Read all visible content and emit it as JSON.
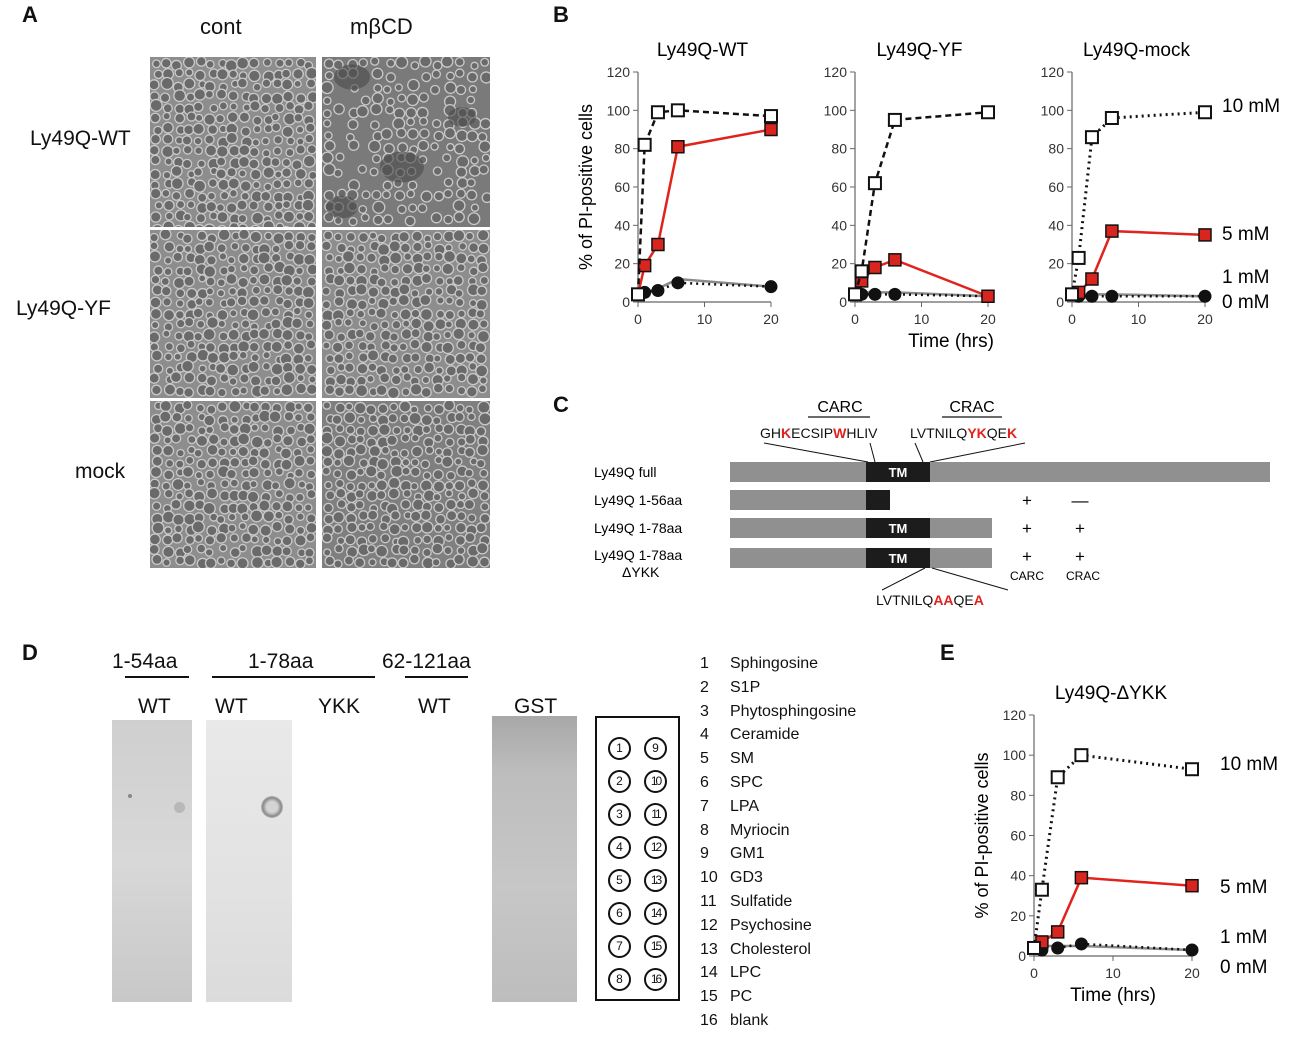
{
  "panels": {
    "A": {
      "letter": "A",
      "col_labels": [
        "cont",
        "mβCD"
      ],
      "row_labels": [
        "Ly49Q-WT",
        "Ly49Q-YF",
        "mock"
      ]
    },
    "B": {
      "letter": "B"
    },
    "C": {
      "letter": "C",
      "carc_label": "CARC",
      "crac_label": "CRAC",
      "carc_seq": [
        {
          "t": "GH",
          "red": false
        },
        {
          "t": "K",
          "red": true
        },
        {
          "t": "ECSIP",
          "red": false
        },
        {
          "t": "W",
          "red": true
        },
        {
          "t": "HLIV",
          "red": false
        }
      ],
      "crac_seq": [
        {
          "t": "LVTNILQ",
          "red": false
        },
        {
          "t": "YK",
          "red": true
        },
        {
          "t": "QE",
          "red": false
        },
        {
          "t": "K",
          "red": true
        }
      ],
      "mut_seq": [
        {
          "t": "LVTNILQ",
          "red": false
        },
        {
          "t": "AA",
          "red": true
        },
        {
          "t": "QE",
          "red": false
        },
        {
          "t": "A",
          "red": true
        }
      ],
      "tm_label": "TM",
      "constructs": [
        {
          "label": "Ly49Q full",
          "sub": "",
          "carc": "",
          "crac": ""
        },
        {
          "label": "Ly49Q 1-56aa",
          "sub": "",
          "carc": "+",
          "crac": "—"
        },
        {
          "label": "Ly49Q 1-78aa",
          "sub": "",
          "carc": "+",
          "crac": "+"
        },
        {
          "label": "Ly49Q 1-78aa",
          "sub": "ΔYKK",
          "carc": "+",
          "crac": "+"
        }
      ],
      "col_labels": [
        "CARC",
        "CRAC"
      ]
    },
    "D": {
      "letter": "D",
      "groups": [
        "1-54aa",
        "1-78aa",
        "62-121aa"
      ],
      "lanes": [
        "WT",
        "WT",
        "YKK",
        "WT",
        "GST"
      ],
      "spot_numbers": [
        "1",
        "2",
        "3",
        "4",
        "5",
        "6",
        "7",
        "8",
        "9",
        "10",
        "11",
        "12",
        "13",
        "14",
        "15",
        "16"
      ],
      "lipids": [
        {
          "n": "1",
          "name": "Sphingosine"
        },
        {
          "n": "2",
          "name": "S1P"
        },
        {
          "n": "3",
          "name": "Phytosphingosine"
        },
        {
          "n": "4",
          "name": "Ceramide"
        },
        {
          "n": "5",
          "name": "SM"
        },
        {
          "n": "6",
          "name": "SPC"
        },
        {
          "n": "7",
          "name": "LPA"
        },
        {
          "n": "8",
          "name": "Myriocin"
        },
        {
          "n": "9",
          "name": "GM1"
        },
        {
          "n": "10",
          "name": "GD3"
        },
        {
          "n": "11",
          "name": "Sulfatide"
        },
        {
          "n": "12",
          "name": "Psychosine"
        },
        {
          "n": "13",
          "name": "Cholesterol"
        },
        {
          "n": "14",
          "name": "LPC"
        },
        {
          "n": "15",
          "name": "PC"
        },
        {
          "n": "16",
          "name": "blank"
        }
      ]
    },
    "E": {
      "letter": "E"
    }
  },
  "chart_data": [
    {
      "type": "line",
      "id": "B1",
      "title": "Ly49Q-WT",
      "ylabel": "% of PI-positive cells",
      "xlabel": "",
      "xlim": [
        0,
        20
      ],
      "ylim": [
        0,
        120
      ],
      "xticks": [
        0,
        10,
        20
      ],
      "yticks": [
        0,
        20,
        40,
        60,
        80,
        100,
        120
      ],
      "series": [
        {
          "name": "",
          "style": "dashed-white-square",
          "x": [
            0,
            1,
            3,
            6,
            20
          ],
          "y": [
            4,
            82,
            99,
            100,
            97
          ]
        },
        {
          "name": "",
          "style": "red-square",
          "x": [
            0,
            1,
            3,
            6,
            20
          ],
          "y": [
            4,
            19,
            30,
            81,
            90
          ]
        },
        {
          "name": "",
          "style": "gray-line",
          "x": [
            0,
            1,
            3,
            6,
            20
          ],
          "y": [
            4,
            5,
            7,
            12,
            8
          ]
        },
        {
          "name": "",
          "style": "dotted-black-circle",
          "x": [
            0,
            1,
            3,
            6,
            20
          ],
          "y": [
            4,
            5,
            6,
            10,
            8
          ]
        }
      ]
    },
    {
      "type": "line",
      "id": "B2",
      "title": "Ly49Q-YF",
      "ylabel": "",
      "xlabel": "Time (hrs)",
      "xlim": [
        0,
        20
      ],
      "ylim": [
        0,
        120
      ],
      "xticks": [
        0,
        10,
        20
      ],
      "yticks": [
        0,
        20,
        40,
        60,
        80,
        100,
        120
      ],
      "series": [
        {
          "name": "",
          "style": "dashed-white-square",
          "x": [
            0,
            1,
            3,
            6,
            20
          ],
          "y": [
            4,
            16,
            62,
            95,
            99
          ]
        },
        {
          "name": "",
          "style": "red-square",
          "x": [
            0,
            1,
            3,
            6,
            20
          ],
          "y": [
            4,
            11,
            18,
            22,
            3
          ]
        },
        {
          "name": "",
          "style": "gray-line",
          "x": [
            0,
            1,
            3,
            6,
            20
          ],
          "y": [
            4,
            5,
            5,
            5,
            3
          ]
        },
        {
          "name": "",
          "style": "dotted-black-circle",
          "x": [
            0,
            1,
            3,
            6,
            20
          ],
          "y": [
            4,
            4,
            4,
            4,
            3
          ]
        }
      ]
    },
    {
      "type": "line",
      "id": "B3",
      "title": "Ly49Q-mock",
      "ylabel": "",
      "xlabel": "",
      "xlim": [
        0,
        20
      ],
      "ylim": [
        0,
        120
      ],
      "xticks": [
        0,
        10,
        20
      ],
      "yticks": [
        0,
        20,
        40,
        60,
        80,
        100,
        120
      ],
      "series": [
        {
          "name": "10 mM",
          "style": "dotted-white-square",
          "x": [
            0,
            1,
            3,
            6,
            20
          ],
          "y": [
            4,
            23,
            86,
            96,
            99
          ]
        },
        {
          "name": "5 mM",
          "style": "red-square",
          "x": [
            0,
            1,
            3,
            6,
            20
          ],
          "y": [
            4,
            5,
            12,
            37,
            35
          ]
        },
        {
          "name": "1 mM",
          "style": "gray-line",
          "x": [
            0,
            1,
            3,
            6,
            20
          ],
          "y": [
            4,
            4,
            4,
            4,
            3
          ]
        },
        {
          "name": "0 mM",
          "style": "dotted-black-circle",
          "x": [
            0,
            1,
            3,
            6,
            20
          ],
          "y": [
            4,
            3,
            3,
            3,
            3
          ]
        }
      ],
      "legend_placement": "right"
    },
    {
      "type": "line",
      "id": "E1",
      "title": "Ly49Q-ΔYKK",
      "ylabel": "% of PI-positive cells",
      "xlabel": "Time (hrs)",
      "xlim": [
        0,
        20
      ],
      "ylim": [
        0,
        120
      ],
      "xticks": [
        0,
        10,
        20
      ],
      "yticks": [
        0,
        20,
        40,
        60,
        80,
        100,
        120
      ],
      "series": [
        {
          "name": "10 mM",
          "style": "dotted-white-square",
          "x": [
            0,
            1,
            3,
            6,
            20
          ],
          "y": [
            4,
            33,
            89,
            100,
            93
          ]
        },
        {
          "name": "5 mM",
          "style": "red-square",
          "x": [
            0,
            1,
            3,
            6,
            20
          ],
          "y": [
            4,
            7,
            12,
            39,
            35
          ]
        },
        {
          "name": "1 mM",
          "style": "gray-line",
          "x": [
            0,
            1,
            3,
            6,
            20
          ],
          "y": [
            4,
            5,
            5,
            5,
            3
          ]
        },
        {
          "name": "0 mM",
          "style": "dotted-black-circle",
          "x": [
            0,
            1,
            3,
            6,
            20
          ],
          "y": [
            4,
            3,
            4,
            6,
            3
          ]
        }
      ],
      "legend_placement": "right"
    }
  ]
}
